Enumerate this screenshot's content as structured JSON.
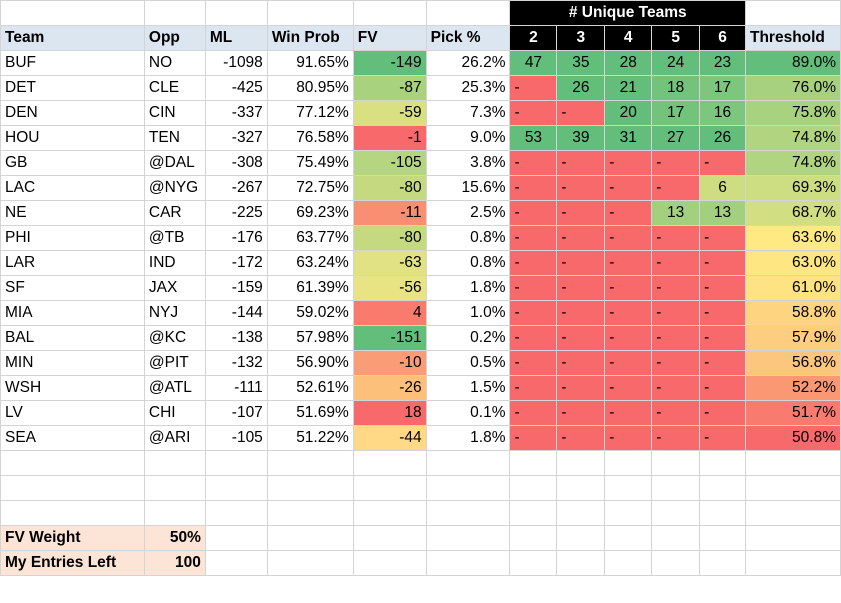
{
  "unique_header": "# Unique Teams",
  "headers": [
    "Team",
    "Opp",
    "ML",
    "Win Prob",
    "FV",
    "Pick %",
    "2",
    "3",
    "4",
    "5",
    "6",
    "Threshold"
  ],
  "rows": [
    {
      "team": "BUF",
      "opp": "NO",
      "ml": "-1098",
      "wp": "91.65%",
      "fv": "-149",
      "pick": "26.2%",
      "u": [
        "47",
        "35",
        "28",
        "24",
        "23"
      ],
      "th": "89.0%"
    },
    {
      "team": "DET",
      "opp": "CLE",
      "ml": "-425",
      "wp": "80.95%",
      "fv": "-87",
      "pick": "25.3%",
      "u": [
        "-",
        "26",
        "21",
        "18",
        "17"
      ],
      "th": "76.0%"
    },
    {
      "team": "DEN",
      "opp": "CIN",
      "ml": "-337",
      "wp": "77.12%",
      "fv": "-59",
      "pick": "7.3%",
      "u": [
        "-",
        "-",
        "20",
        "17",
        "16"
      ],
      "th": "75.8%"
    },
    {
      "team": "HOU",
      "opp": "TEN",
      "ml": "-327",
      "wp": "76.58%",
      "fv": "-1",
      "pick": "9.0%",
      "u": [
        "53",
        "39",
        "31",
        "27",
        "26"
      ],
      "th": "74.8%"
    },
    {
      "team": "GB",
      "opp": "@DAL",
      "ml": "-308",
      "wp": "75.49%",
      "fv": "-105",
      "pick": "3.8%",
      "u": [
        "-",
        "-",
        "-",
        "-",
        "-"
      ],
      "th": "74.8%"
    },
    {
      "team": "LAC",
      "opp": "@NYG",
      "ml": "-267",
      "wp": "72.75%",
      "fv": "-80",
      "pick": "15.6%",
      "u": [
        "-",
        "-",
        "-",
        "-",
        "6"
      ],
      "th": "69.3%"
    },
    {
      "team": "NE",
      "opp": "CAR",
      "ml": "-225",
      "wp": "69.23%",
      "fv": "-11",
      "pick": "2.5%",
      "u": [
        "-",
        "-",
        "-",
        "13",
        "13"
      ],
      "th": "68.7%"
    },
    {
      "team": "PHI",
      "opp": "@TB",
      "ml": "-176",
      "wp": "63.77%",
      "fv": "-80",
      "pick": "0.8%",
      "u": [
        "-",
        "-",
        "-",
        "-",
        "-"
      ],
      "th": "63.6%"
    },
    {
      "team": "LAR",
      "opp": "IND",
      "ml": "-172",
      "wp": "63.24%",
      "fv": "-63",
      "pick": "0.8%",
      "u": [
        "-",
        "-",
        "-",
        "-",
        "-"
      ],
      "th": "63.0%"
    },
    {
      "team": "SF",
      "opp": "JAX",
      "ml": "-159",
      "wp": "61.39%",
      "fv": "-56",
      "pick": "1.8%",
      "u": [
        "-",
        "-",
        "-",
        "-",
        "-"
      ],
      "th": "61.0%"
    },
    {
      "team": "MIA",
      "opp": "NYJ",
      "ml": "-144",
      "wp": "59.02%",
      "fv": "4",
      "pick": "1.0%",
      "u": [
        "-",
        "-",
        "-",
        "-",
        "-"
      ],
      "th": "58.8%"
    },
    {
      "team": "BAL",
      "opp": "@KC",
      "ml": "-138",
      "wp": "57.98%",
      "fv": "-151",
      "pick": "0.2%",
      "u": [
        "-",
        "-",
        "-",
        "-",
        "-"
      ],
      "th": "57.9%"
    },
    {
      "team": "MIN",
      "opp": "@PIT",
      "ml": "-132",
      "wp": "56.90%",
      "fv": "-10",
      "pick": "0.5%",
      "u": [
        "-",
        "-",
        "-",
        "-",
        "-"
      ],
      "th": "56.8%"
    },
    {
      "team": "WSH",
      "opp": "@ATL",
      "ml": "-111",
      "wp": "52.61%",
      "fv": "-26",
      "pick": "1.5%",
      "u": [
        "-",
        "-",
        "-",
        "-",
        "-"
      ],
      "th": "52.2%"
    },
    {
      "team": "LV",
      "opp": "CHI",
      "ml": "-107",
      "wp": "51.69%",
      "fv": "18",
      "pick": "0.1%",
      "u": [
        "-",
        "-",
        "-",
        "-",
        "-"
      ],
      "th": "51.7%"
    },
    {
      "team": "SEA",
      "opp": "@ARI",
      "ml": "-105",
      "wp": "51.22%",
      "fv": "-44",
      "pick": "1.8%",
      "u": [
        "-",
        "-",
        "-",
        "-",
        "-"
      ],
      "th": "50.8%"
    }
  ],
  "summary": {
    "fv_weight_label": "FV Weight",
    "fv_weight_value": "50%",
    "entries_label": "My Entries Left",
    "entries_value": "100"
  },
  "colors": {
    "fv": [
      "#63be7b",
      "#a9d27f",
      "#d8e082",
      "#f8696b",
      "#b5d580",
      "#c4d980",
      "#f98f72",
      "#c4d980",
      "#e0e283",
      "#e8e483",
      "#f97b6e",
      "#63be7b",
      "#fa9c75",
      "#fcc07b",
      "#f8696b",
      "#ffd985"
    ],
    "threshold": [
      "#63be7b",
      "#a7d17e",
      "#a9d27f",
      "#b0d47f",
      "#b0d47f",
      "#cddd81",
      "#d1de81",
      "#fee983",
      "#fee783",
      "#fee383",
      "#fed481",
      "#fece80",
      "#fdc67e",
      "#fa9873",
      "#f97a6f",
      "#f8696b"
    ],
    "unique_dash": "#f8696b",
    "unique_cells": {
      "0": [
        "#63be7b",
        "#63be7b",
        "#63be7b",
        "#63be7b",
        "#63be7b"
      ],
      "1": [
        null,
        "#63be7b",
        "#63be7b",
        "#74c37c",
        "#7cc67d"
      ],
      "2": [
        null,
        null,
        "#63be7b",
        "#74c37c",
        "#7cc67d"
      ],
      "3": [
        "#63be7b",
        "#63be7b",
        "#63be7b",
        "#63be7b",
        "#63be7b"
      ],
      "5": [
        null,
        null,
        null,
        null,
        "#cfdd81"
      ],
      "6": [
        null,
        null,
        null,
        "#a3d07e",
        "#a3d07e"
      ]
    }
  }
}
